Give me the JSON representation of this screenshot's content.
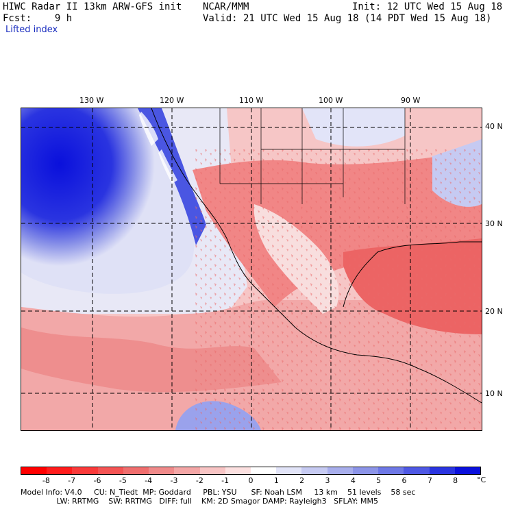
{
  "header": {
    "title": "HIWC Radar II 13km ARW-GFS init",
    "org": "NCAR/MMM",
    "init": "Init: 12 UTC Wed 15 Aug 18",
    "fcst": "Fcst:    9 h",
    "valid": "Valid: 21 UTC Wed 15 Aug 18 (14 PDT Wed 15 Aug 18)",
    "field": "Lifted index"
  },
  "map": {
    "lon_labels": [
      "130 W",
      "120 W",
      "110 W",
      "100 W",
      "90 W"
    ],
    "lat_labels": [
      "40 N",
      "30 N",
      "20 N",
      "10 N"
    ]
  },
  "colorbar": {
    "labels": [
      "-8",
      "-7",
      "-6",
      "-5",
      "-4",
      "-3",
      "-2",
      "-1",
      "0",
      "1",
      "2",
      "3",
      "4",
      "5",
      "6",
      "7",
      "8"
    ],
    "unit": "°C",
    "colors": [
      "#ff0000",
      "#ff1c1c",
      "#fa3a3a",
      "#f45454",
      "#f06e6e",
      "#f08a8a",
      "#f4a6a6",
      "#f8c4c4",
      "#fce0e0",
      "#ffffff",
      "#e2e4f8",
      "#c6caf2",
      "#a8aeec",
      "#8c94e8",
      "#6e78e6",
      "#4e58e4",
      "#2a34e0",
      "#0a10dc"
    ]
  },
  "footer": {
    "line1": "Model Info: V4.0     CU: N_Tiedt  MP: Goddard     PBL: YSU      SF: Noah LSM     13 km    51 levels    58 sec",
    "line2": "               LW: RRTMG    SW: RRTMG   DIFF: full    KM: 2D Smagor DAMP: Rayleigh3   SFLAY: MM5"
  }
}
